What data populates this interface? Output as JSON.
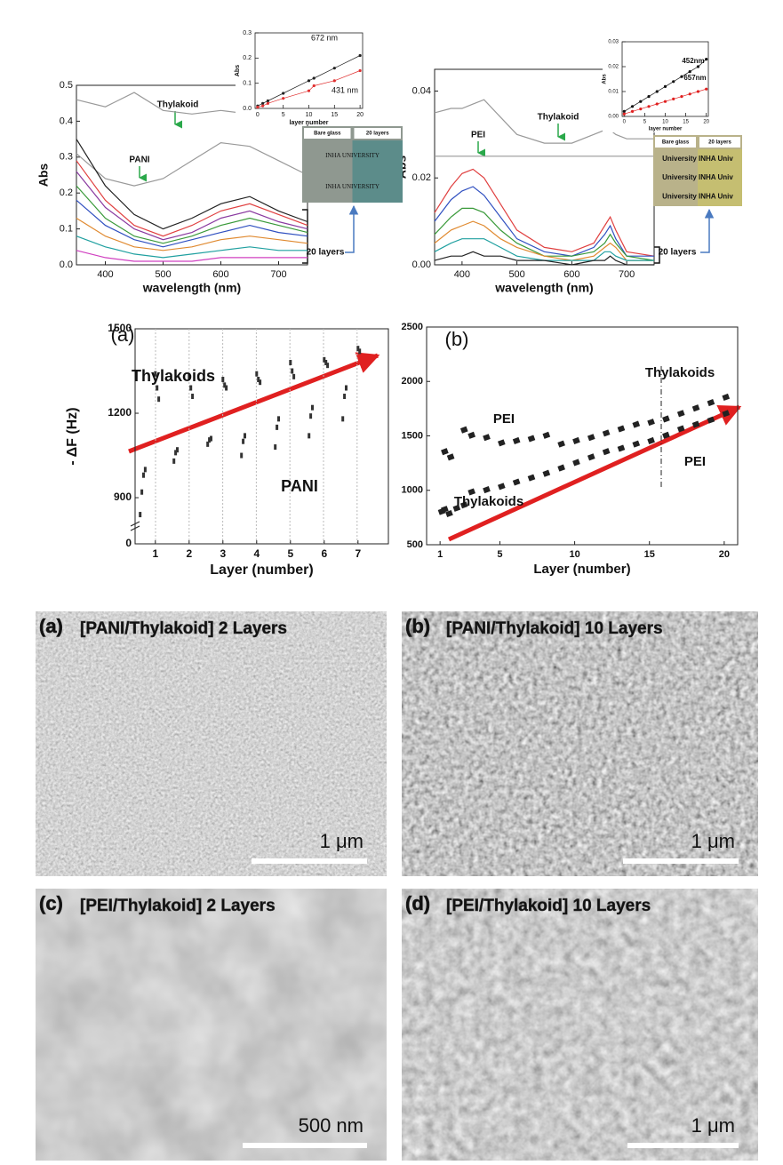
{
  "chart_data": [
    {
      "type": "line",
      "ylabel": "Abs",
      "xlabel": "wavelength (nm)",
      "xlim": [
        350,
        750
      ],
      "ylim": [
        0,
        0.5
      ],
      "xticks": [
        400,
        500,
        600,
        700
      ],
      "yticks": [
        {
          "value": 0,
          "label": "0.0"
        },
        0.1,
        0.2,
        0.3,
        0.4,
        0.5
      ],
      "x": [
        350,
        400,
        450,
        500,
        550,
        600,
        650,
        700,
        750
      ],
      "series": [
        {
          "color": "#999999",
          "values": [
            0.46,
            0.44,
            0.48,
            0.43,
            0.42,
            0.43,
            0.42,
            0.41,
            0.42
          ]
        },
        {
          "color": "#999999",
          "values": [
            0.31,
            0.24,
            0.22,
            0.24,
            0.29,
            0.34,
            0.33,
            0.29,
            0.25
          ]
        },
        {
          "color": "#222222",
          "values": [
            0.35,
            0.22,
            0.14,
            0.1,
            0.13,
            0.17,
            0.19,
            0.15,
            0.12
          ]
        },
        {
          "color": "#e04040",
          "values": [
            0.29,
            0.18,
            0.11,
            0.08,
            0.11,
            0.15,
            0.17,
            0.14,
            0.11
          ]
        },
        {
          "color": "#8a3aa0",
          "values": [
            0.26,
            0.16,
            0.1,
            0.07,
            0.09,
            0.13,
            0.15,
            0.12,
            0.1
          ]
        },
        {
          "color": "#3a9a3a",
          "values": [
            0.22,
            0.13,
            0.08,
            0.06,
            0.08,
            0.11,
            0.13,
            0.11,
            0.09
          ]
        },
        {
          "color": "#3050c0",
          "values": [
            0.18,
            0.11,
            0.07,
            0.05,
            0.07,
            0.09,
            0.11,
            0.09,
            0.08
          ]
        },
        {
          "color": "#e08a30",
          "values": [
            0.13,
            0.08,
            0.05,
            0.04,
            0.05,
            0.07,
            0.08,
            0.07,
            0.06
          ]
        },
        {
          "color": "#20a0a0",
          "values": [
            0.08,
            0.05,
            0.03,
            0.02,
            0.03,
            0.04,
            0.05,
            0.04,
            0.04
          ]
        },
        {
          "color": "#d040c0",
          "values": [
            0.04,
            0.02,
            0.01,
            0.01,
            0.01,
            0.02,
            0.02,
            0.02,
            0.02
          ]
        }
      ],
      "annotations": [
        "Thylakoid",
        "PANI",
        "20 layers"
      ]
    },
    {
      "type": "line",
      "markers": true,
      "ylabel": "Abs",
      "xlabel": "layer number",
      "xlim": [
        -0.5,
        20.5
      ],
      "ylim": [
        0,
        0.3
      ],
      "xticks": [
        0,
        5,
        10,
        15,
        20
      ],
      "yticks": [
        {
          "value": 0,
          "label": "0.0"
        },
        0.1,
        0.2,
        0.3
      ],
      "x": [
        0,
        1,
        2,
        5,
        10,
        11,
        15,
        20
      ],
      "series": [
        {
          "name": "672 nm",
          "color": "#222222",
          "values": [
            0.01,
            0.02,
            0.03,
            0.06,
            0.11,
            0.12,
            0.16,
            0.21
          ]
        },
        {
          "name": "431 nm",
          "color": "#e03030",
          "values": [
            0.005,
            0.01,
            0.02,
            0.04,
            0.07,
            0.09,
            0.11,
            0.15
          ]
        }
      ]
    },
    {
      "type": "line",
      "ylabel": "Abs",
      "xlabel": "wavelength (nm)",
      "xlim": [
        350,
        750
      ],
      "ylim": [
        0,
        0.045
      ],
      "xticks": [
        400,
        500,
        600,
        700
      ],
      "yticks": [
        {
          "value": 0,
          "label": "0.00"
        },
        {
          "value": 0.02,
          "label": "0.02"
        },
        {
          "value": 0.04,
          "label": "0.04"
        }
      ],
      "x": [
        350,
        380,
        400,
        420,
        440,
        470,
        500,
        550,
        600,
        640,
        660,
        670,
        680,
        700,
        750
      ],
      "series": [
        {
          "color": "#999999",
          "values": [
            0.035,
            0.036,
            0.036,
            0.037,
            0.038,
            0.034,
            0.03,
            0.028,
            0.028,
            0.03,
            0.031,
            0.031,
            0.03,
            0.029,
            0.029
          ]
        },
        {
          "color": "#999999",
          "values": [
            0.025,
            0.025,
            0.025,
            0.025,
            0.025,
            0.025,
            0.025,
            0.025,
            0.025,
            0.025,
            0.025,
            0.025,
            0.025,
            0.025,
            0.025
          ]
        },
        {
          "color": "#e04040",
          "values": [
            0.012,
            0.018,
            0.021,
            0.022,
            0.02,
            0.014,
            0.008,
            0.004,
            0.003,
            0.005,
            0.009,
            0.011,
            0.008,
            0.003,
            0.002
          ]
        },
        {
          "color": "#3050c0",
          "values": [
            0.01,
            0.015,
            0.017,
            0.018,
            0.016,
            0.011,
            0.006,
            0.003,
            0.002,
            0.004,
            0.007,
            0.009,
            0.006,
            0.002,
            0.002
          ]
        },
        {
          "color": "#3a9a3a",
          "values": [
            0.007,
            0.011,
            0.013,
            0.013,
            0.012,
            0.008,
            0.005,
            0.002,
            0.002,
            0.003,
            0.005,
            0.007,
            0.005,
            0.002,
            0.001
          ]
        },
        {
          "color": "#e08a30",
          "values": [
            0.005,
            0.008,
            0.009,
            0.01,
            0.009,
            0.006,
            0.004,
            0.002,
            0.001,
            0.002,
            0.004,
            0.005,
            0.004,
            0.001,
            0.001
          ]
        },
        {
          "color": "#20a0a0",
          "values": [
            0.003,
            0.005,
            0.006,
            0.006,
            0.006,
            0.004,
            0.002,
            0.001,
            0.001,
            0.001,
            0.003,
            0.003,
            0.002,
            0.001,
            0.001
          ]
        },
        {
          "color": "#222222",
          "values": [
            0.001,
            0.002,
            0.002,
            0.003,
            0.002,
            0.002,
            0.001,
            0.001,
            0,
            0.001,
            0.001,
            0.002,
            0.001,
            0,
            0
          ]
        }
      ],
      "annotations": [
        "PEI",
        "Thylakoid",
        "20 layers"
      ]
    },
    {
      "type": "line",
      "markers": true,
      "ylabel": "Abs",
      "xlabel": "layer number",
      "xlim": [
        -0.5,
        20.5
      ],
      "ylim": [
        0,
        0.03
      ],
      "xticks": [
        0,
        5,
        10,
        15,
        20
      ],
      "yticks": [
        {
          "value": 0,
          "label": "0.00"
        },
        {
          "value": 0.01,
          "label": "0.01"
        },
        {
          "value": 0.02,
          "label": "0.02"
        },
        {
          "value": 0.03,
          "label": "0.03"
        }
      ],
      "x": [
        0,
        2,
        4,
        6,
        8,
        10,
        12,
        14,
        16,
        18,
        20
      ],
      "series": [
        {
          "name": "452nm",
          "color": "#111111",
          "values": [
            0.002,
            0.004,
            0.006,
            0.008,
            0.01,
            0.012,
            0.014,
            0.016,
            0.018,
            0.02,
            0.023
          ]
        },
        {
          "name": "657nm",
          "color": "#e02020",
          "values": [
            0.001,
            0.002,
            0.003,
            0.004,
            0.005,
            0.006,
            0.007,
            0.008,
            0.009,
            0.01,
            0.011
          ]
        }
      ]
    },
    {
      "type": "scatter",
      "ylabel": "- ΔF (Hz)",
      "xlabel": "Layer (number)",
      "xlim": [
        0.4,
        7.9
      ],
      "ylim": [
        736,
        1500
      ],
      "xticks": [
        1,
        2,
        3,
        4,
        5,
        6,
        7
      ],
      "yticks": [
        900,
        1200,
        1500
      ],
      "axis_break_tick": 0,
      "series": [
        {
          "color": "#333333",
          "x": [
            1,
            1.05,
            1.1,
            2,
            2.05,
            2.1,
            3,
            3.05,
            3.1,
            4,
            4.05,
            4.1,
            5,
            5.05,
            5.1,
            6,
            6.05,
            6.1,
            7,
            7.05
          ],
          "values": [
            1340,
            1290,
            1250,
            1330,
            1290,
            1260,
            1320,
            1300,
            1290,
            1340,
            1320,
            1310,
            1380,
            1350,
            1330,
            1390,
            1380,
            1370,
            1430,
            1420
          ]
        },
        {
          "color": "#333333",
          "x": [
            0.55,
            0.6,
            0.65,
            0.7,
            1.55,
            1.6,
            1.65,
            2.55,
            2.6,
            2.65,
            3.55,
            3.6,
            3.65,
            4.55,
            4.6,
            4.65,
            5.55,
            5.6,
            5.65,
            6.55,
            6.6,
            6.65
          ],
          "values": [
            840,
            920,
            980,
            1000,
            1030,
            1060,
            1070,
            1090,
            1105,
            1110,
            1050,
            1100,
            1120,
            1080,
            1150,
            1180,
            1120,
            1190,
            1220,
            1180,
            1260,
            1290
          ]
        }
      ],
      "annotations": [
        "(a)",
        "Thylakoids",
        "PANI"
      ]
    },
    {
      "type": "scatter",
      "ylabel": null,
      "xlabel": "Layer (number)",
      "xlim": [
        0.1,
        20.9
      ],
      "ylim": [
        500,
        2500
      ],
      "xticks": [
        1,
        5,
        10,
        15,
        20
      ],
      "yticks": [
        500,
        1000,
        1500,
        2000,
        2500
      ],
      "series": [
        {
          "color": "#222222",
          "x": [
            1,
            1.2,
            1.5,
            2,
            2.5,
            3,
            4,
            5,
            6,
            7,
            8,
            9,
            10,
            11,
            12,
            13,
            14,
            15,
            16,
            17,
            18,
            19,
            20
          ],
          "values": [
            800,
            820,
            780,
            830,
            860,
            980,
            1000,
            1030,
            1070,
            1110,
            1150,
            1200,
            1250,
            1300,
            1350,
            1380,
            1420,
            1450,
            1500,
            1560,
            1600,
            1640,
            1700
          ]
        },
        {
          "color": "#222222",
          "x": [
            1.2,
            1.6,
            2.5,
            3,
            4,
            5,
            6,
            7,
            8,
            9,
            10,
            11,
            12,
            13,
            14,
            15,
            16,
            17,
            18,
            19,
            20
          ],
          "values": [
            1350,
            1300,
            1550,
            1500,
            1480,
            1430,
            1450,
            1470,
            1500,
            1420,
            1450,
            1480,
            1520,
            1560,
            1600,
            1620,
            1650,
            1700,
            1750,
            1800,
            1850
          ]
        }
      ],
      "annotations": [
        "(b)",
        "PEI",
        "Thylakoids",
        "Thylakoids",
        "PEI"
      ]
    }
  ],
  "photos": [
    {
      "cells": [
        "Bare glass",
        "20 layers",
        "INHA UNIVERSITY",
        "INHA UNIVERSITY"
      ]
    },
    {
      "cells": [
        "Bare glass",
        "20 layers",
        "University INHA Univ",
        "University INHA Univ",
        "University INHA Univ"
      ]
    }
  ],
  "sem_images": [
    {
      "label": "(a)",
      "title": "[PANI/Thylakoid] 2 Layers",
      "scale_bar": "1 μm"
    },
    {
      "label": "(b)",
      "title": "[PANI/Thylakoid] 10 Layers",
      "scale_bar": "1 μm"
    },
    {
      "label": "(c)",
      "title": "[PEI/Thylakoid] 2 Layers",
      "scale_bar": "500 nm"
    },
    {
      "label": "(d)",
      "title": "[PEI/Thylakoid] 10 Layers",
      "scale_bar": "1 μm"
    }
  ]
}
